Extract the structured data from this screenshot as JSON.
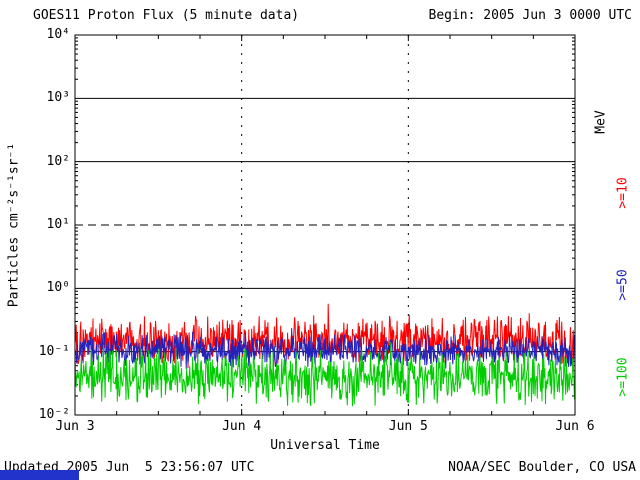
{
  "header": {
    "title": "GOES11 Proton Flux (5 minute data)",
    "begin_label": "Begin: 2005 Jun 3 0000 UTC"
  },
  "footer": {
    "updated": "Updated 2005 Jun  5 23:56:07 UTC",
    "source": "NOAA/SEC Boulder, CO USA"
  },
  "chart_data": {
    "type": "line",
    "title": "GOES11 Proton Flux (5 minute data)",
    "xlabel": "Universal Time",
    "ylabel": "Particles cm⁻²s⁻¹sr⁻¹",
    "unit_label": "MeV",
    "x_tick_labels": [
      "Jun 3",
      "Jun 4",
      "Jun 5",
      "Jun 6"
    ],
    "y_tick_labels": [
      "10⁴",
      "10³",
      "10²",
      "10¹",
      "10⁰",
      "10⁻¹",
      "10⁻²"
    ],
    "y_log_range": [
      -2,
      4
    ],
    "x_range": {
      "start": "2005 Jun 3 0000 UTC",
      "end": "2005 Jun 6 0000 UTC",
      "days": 3
    },
    "samples_per_day": 288,
    "grid": {
      "solid_decades": [
        3,
        2,
        0,
        -1
      ],
      "dashed_decade": 1,
      "vertical_dashed_days": [
        1,
        2
      ]
    },
    "series": [
      {
        "name": ">=10",
        "threshold_mev": 10,
        "color": "#ff0000",
        "base_flux": 0.15,
        "spread_log10": 0.45,
        "seed": 101
      },
      {
        "name": ">=50",
        "threshold_mev": 50,
        "color": "#2222bb",
        "base_flux": 0.105,
        "spread_log10": 0.3,
        "seed": 202
      },
      {
        "name": ">=100",
        "threshold_mev": 100,
        "color": "#00cc00",
        "base_flux": 0.04,
        "spread_log10": 0.5,
        "seed": 303
      }
    ]
  }
}
